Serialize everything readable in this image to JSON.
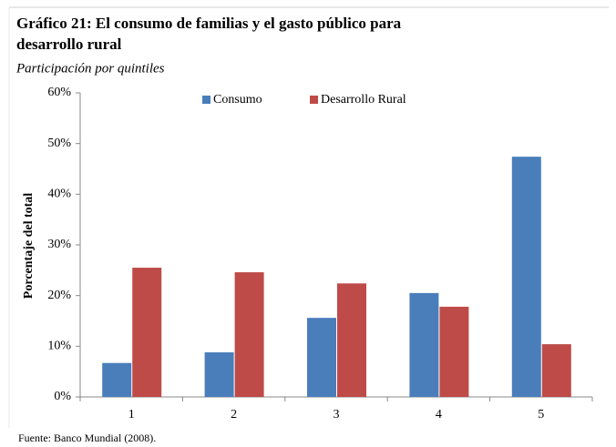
{
  "chart_data": {
    "type": "bar",
    "title": [
      "Gráfico 21: El consumo de familias y el gasto público para",
      "desarrollo rural"
    ],
    "subtitle": "Participación por quintiles",
    "ylabel": "Porcentaje del total",
    "source": "Fuente: Banco Mundial (2008).",
    "categories": [
      "1",
      "2",
      "3",
      "4",
      "5"
    ],
    "series": [
      {
        "name": "Consumo",
        "color": "#4a7ebb",
        "values": [
          6.7,
          8.8,
          15.6,
          20.5,
          47.4
        ]
      },
      {
        "name": "Desarrollo Rural",
        "color": "#be4b48",
        "values": [
          25.5,
          24.6,
          22.4,
          17.8,
          10.4
        ]
      }
    ],
    "ylim": [
      0,
      60
    ],
    "yticks": [
      {
        "value": 0,
        "label": "0%"
      },
      {
        "value": 10,
        "label": "10%"
      },
      {
        "value": 20,
        "label": "20%"
      },
      {
        "value": 30,
        "label": "30%"
      },
      {
        "value": 40,
        "label": "40%"
      },
      {
        "value": 50,
        "label": "50%"
      },
      {
        "value": 60,
        "label": "60%"
      }
    ],
    "legend": "top"
  }
}
